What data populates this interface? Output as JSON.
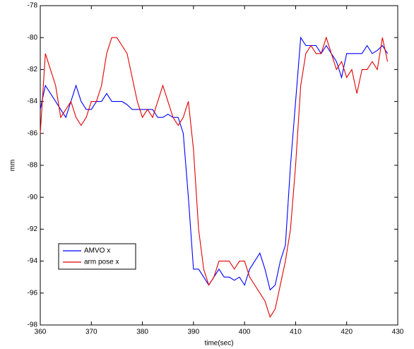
{
  "chart_data": {
    "type": "line",
    "xlabel": "time(sec)",
    "ylabel": "mm",
    "x": [
      360,
      361,
      362,
      363,
      364,
      365,
      366,
      367,
      368,
      369,
      370,
      371,
      372,
      373,
      374,
      375,
      376,
      377,
      378,
      379,
      380,
      381,
      382,
      383,
      384,
      385,
      386,
      387,
      388,
      389,
      390,
      391,
      392,
      393,
      394,
      395,
      396,
      397,
      398,
      399,
      400,
      401,
      402,
      403,
      404,
      405,
      406,
      407,
      408,
      409,
      410,
      411,
      412,
      413,
      414,
      415,
      416,
      417,
      418,
      419,
      420,
      421,
      422,
      423,
      424,
      425,
      426,
      427,
      428
    ],
    "series": [
      {
        "name": "AMVO x",
        "color": "#0000ff",
        "values": [
          -84.5,
          -83,
          -83.5,
          -84,
          -84.5,
          -85,
          -84,
          -83,
          -84,
          -84.5,
          -84.5,
          -84,
          -84,
          -83.5,
          -84,
          -84,
          -84,
          -84.2,
          -84.5,
          -84.5,
          -84.5,
          -84.5,
          -84.5,
          -85,
          -85,
          -84.8,
          -85,
          -85,
          -86,
          -90,
          -94.5,
          -94.5,
          -95,
          -95.5,
          -95,
          -94.5,
          -95,
          -95,
          -95.2,
          -95,
          -95.5,
          -94.5,
          -94,
          -93.5,
          -94.5,
          -95.8,
          -95.5,
          -94,
          -93,
          -88,
          -84,
          -80,
          -80.5,
          -80.5,
          -80.5,
          -81,
          -80.5,
          -81,
          -81.5,
          -82.5,
          -81,
          -81,
          -81,
          -81,
          -80.5,
          -81,
          -80.8,
          -80.5,
          -81
        ]
      },
      {
        "name": "arm pose x",
        "color": "#e00000",
        "values": [
          -86,
          -81,
          -82,
          -83,
          -85,
          -84.5,
          -84,
          -85,
          -85.5,
          -85,
          -84,
          -84,
          -83,
          -81,
          -80,
          -80,
          -80.5,
          -81,
          -82.5,
          -84,
          -85,
          -84.5,
          -85,
          -84,
          -83,
          -84,
          -85,
          -85.5,
          -85,
          -84,
          -87,
          -92,
          -94.5,
          -95.5,
          -95,
          -94,
          -94,
          -94,
          -94.5,
          -94,
          -94,
          -95,
          -95.5,
          -96,
          -96.5,
          -97.5,
          -97,
          -95.5,
          -94,
          -92,
          -88,
          -83,
          -81,
          -80.5,
          -81,
          -81,
          -80,
          -81,
          -82,
          -81.5,
          -82.5,
          -82,
          -83.5,
          -82,
          -82,
          -81.5,
          -82,
          -80,
          -81.5
        ]
      }
    ],
    "xlim": [
      360,
      430
    ],
    "xticks": [
      360,
      370,
      380,
      390,
      400,
      410,
      420,
      430
    ],
    "ylim": [
      -98,
      -78
    ],
    "yticks": [
      -98,
      -96,
      -94,
      -92,
      -90,
      -88,
      -86,
      -84,
      -82,
      -80,
      -78
    ],
    "legend": "lower left"
  }
}
